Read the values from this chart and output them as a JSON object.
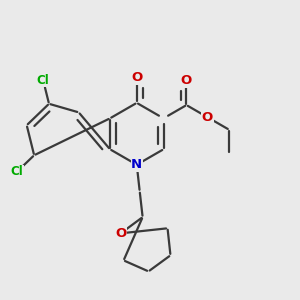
{
  "bg_color": "#eaeaea",
  "bond_color": "#3a3a3a",
  "bond_width": 1.6,
  "atom_colors": {
    "N": "#0000cc",
    "O": "#cc0000",
    "Cl": "#00aa00"
  }
}
